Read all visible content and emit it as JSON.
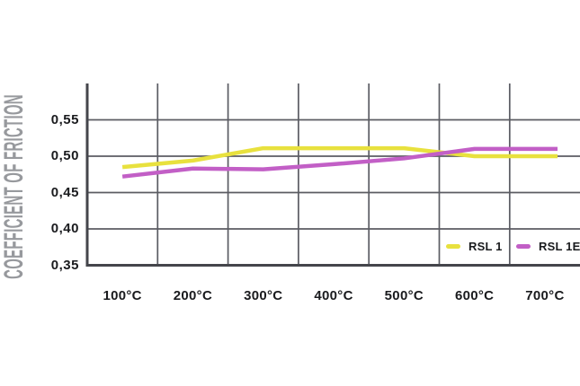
{
  "chart_data": {
    "type": "line",
    "title": "",
    "ylabel": "COEFFICIENT OF FRICTION",
    "xlabel": "",
    "categories": [
      "100°C",
      "200°C",
      "300°C",
      "400°C",
      "500°C",
      "600°C",
      "700°C"
    ],
    "series": [
      {
        "name": "RSL 1",
        "color": "#e8e13e",
        "values": [
          0.485,
          0.494,
          0.511,
          0.511,
          0.511,
          0.5,
          0.5
        ]
      },
      {
        "name": "RSL 1E",
        "color": "#c25fc6",
        "values": [
          0.472,
          0.483,
          0.482,
          0.489,
          0.497,
          0.51,
          0.51
        ]
      }
    ],
    "ytick_labels": [
      "0,55",
      "0,50",
      "0,45",
      "0,40",
      "0,35"
    ],
    "ytick_values": [
      0.55,
      0.5,
      0.45,
      0.4,
      0.35
    ],
    "ylim": [
      0.35,
      0.6
    ],
    "grid": true,
    "grid_color": "#5b5c63",
    "axis_color": "#44454b",
    "legend_position": "inside-bottom-right"
  }
}
